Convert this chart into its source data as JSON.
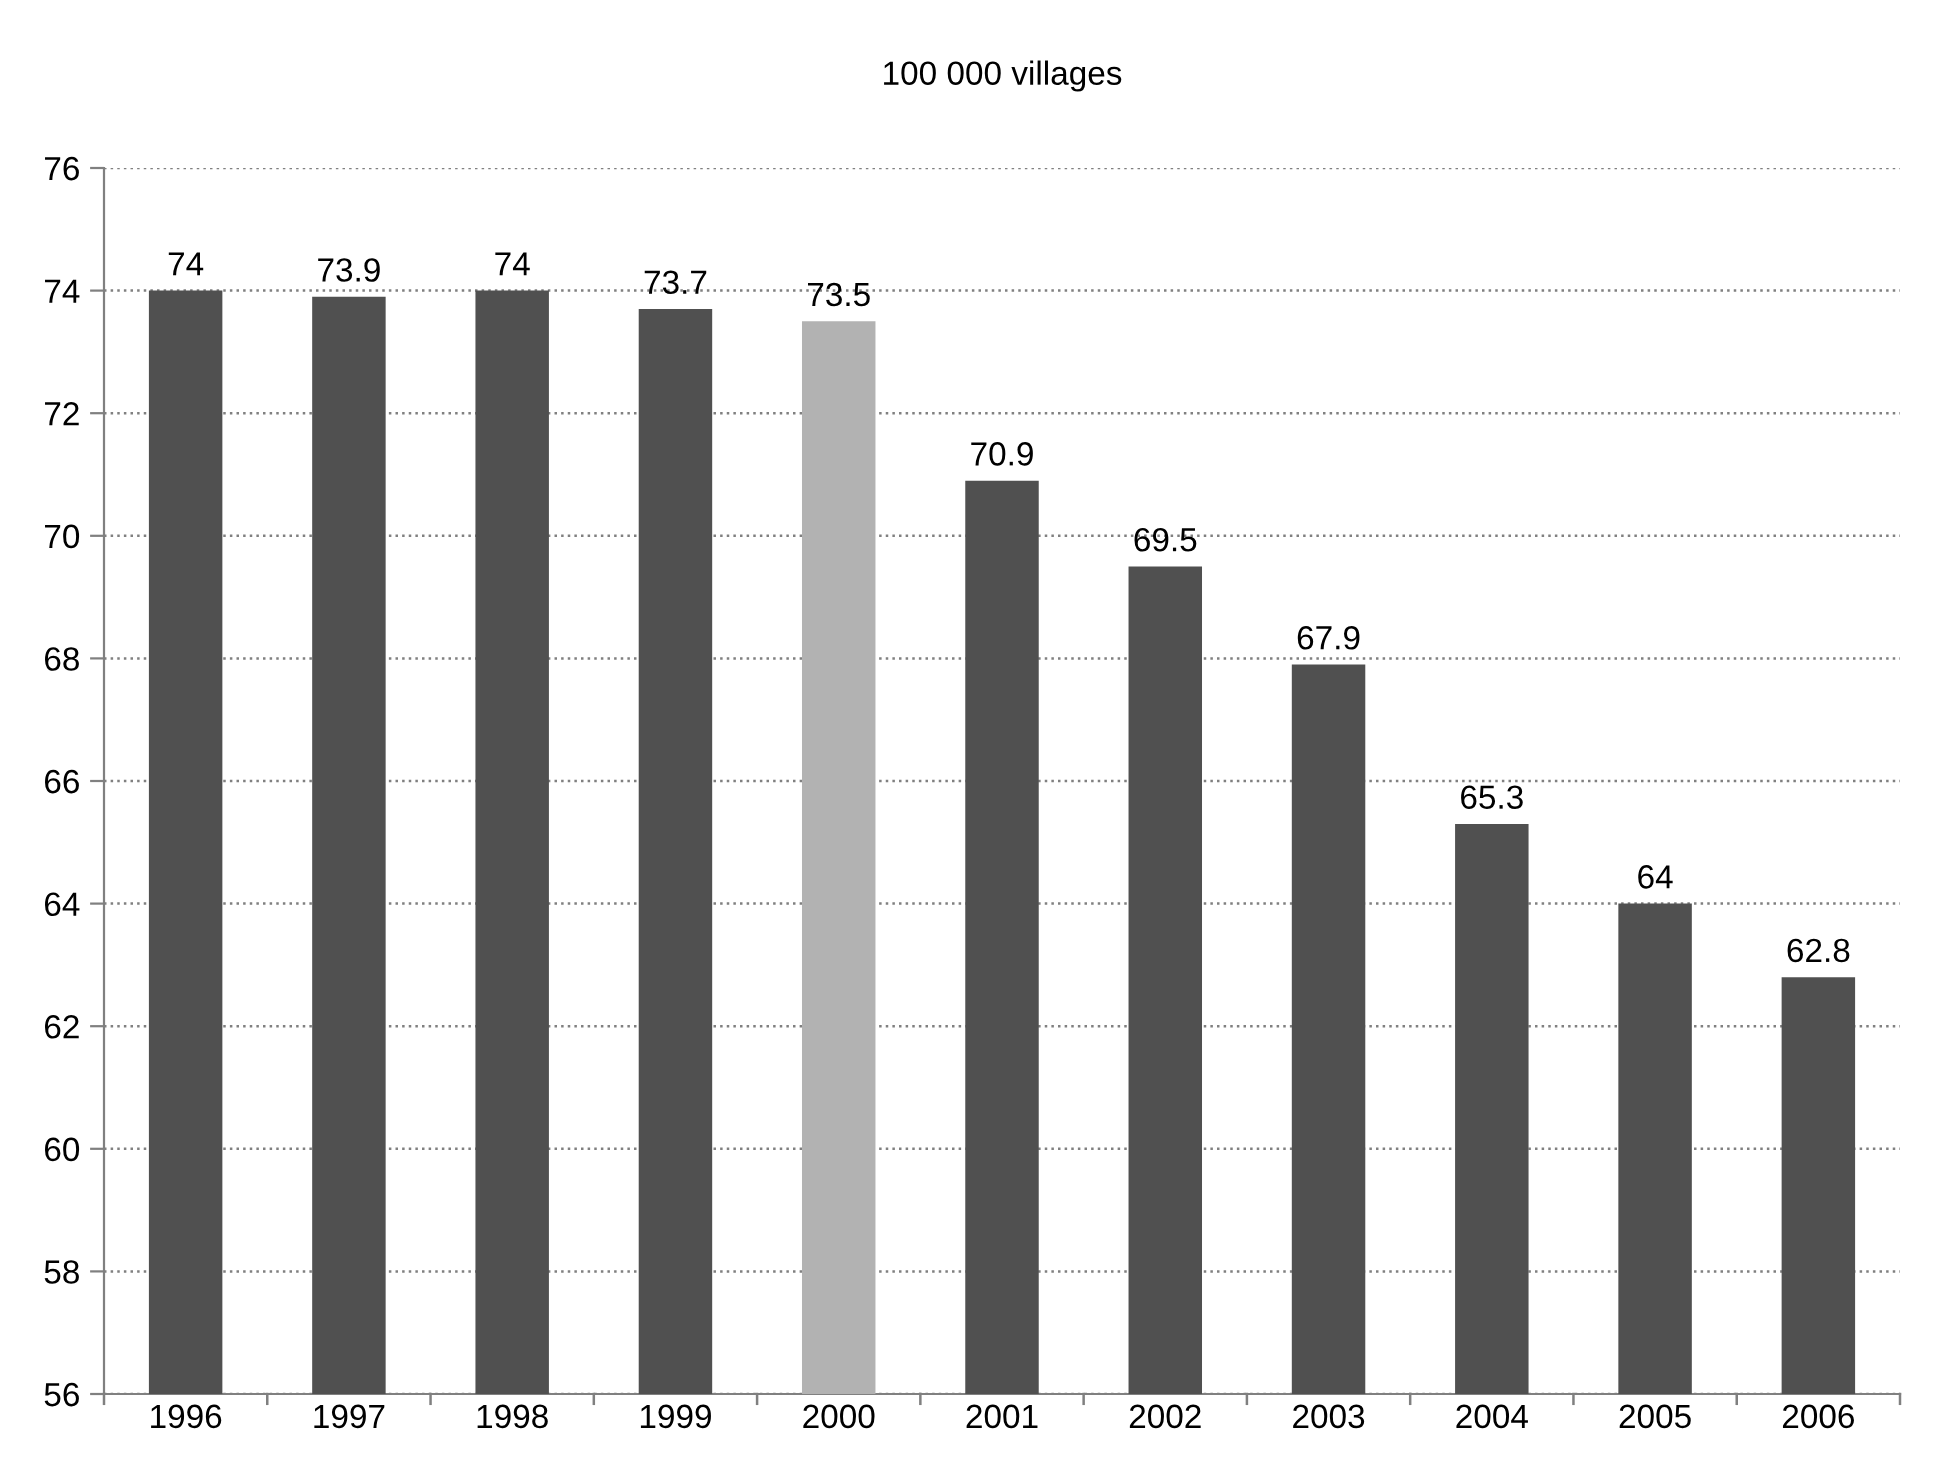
{
  "chart_data": {
    "type": "bar",
    "title": "100 000 villages",
    "categories": [
      "1996",
      "1997",
      "1998",
      "1999",
      "2000",
      "2001",
      "2002",
      "2003",
      "2004",
      "2005",
      "2006"
    ],
    "values": [
      74,
      73.9,
      74,
      73.7,
      73.5,
      70.9,
      69.5,
      67.9,
      65.3,
      64,
      62.8
    ],
    "colors": [
      "#505050",
      "#505050",
      "#505050",
      "#505050",
      "#b2b2b2",
      "#505050",
      "#505050",
      "#505050",
      "#505050",
      "#505050",
      "#505050"
    ],
    "ylim": [
      56,
      76
    ],
    "yticks": [
      56,
      58,
      60,
      62,
      64,
      66,
      68,
      70,
      72,
      74,
      76
    ],
    "grid": "y",
    "line_style": "dotted",
    "data_labels": true,
    "legend": false
  }
}
